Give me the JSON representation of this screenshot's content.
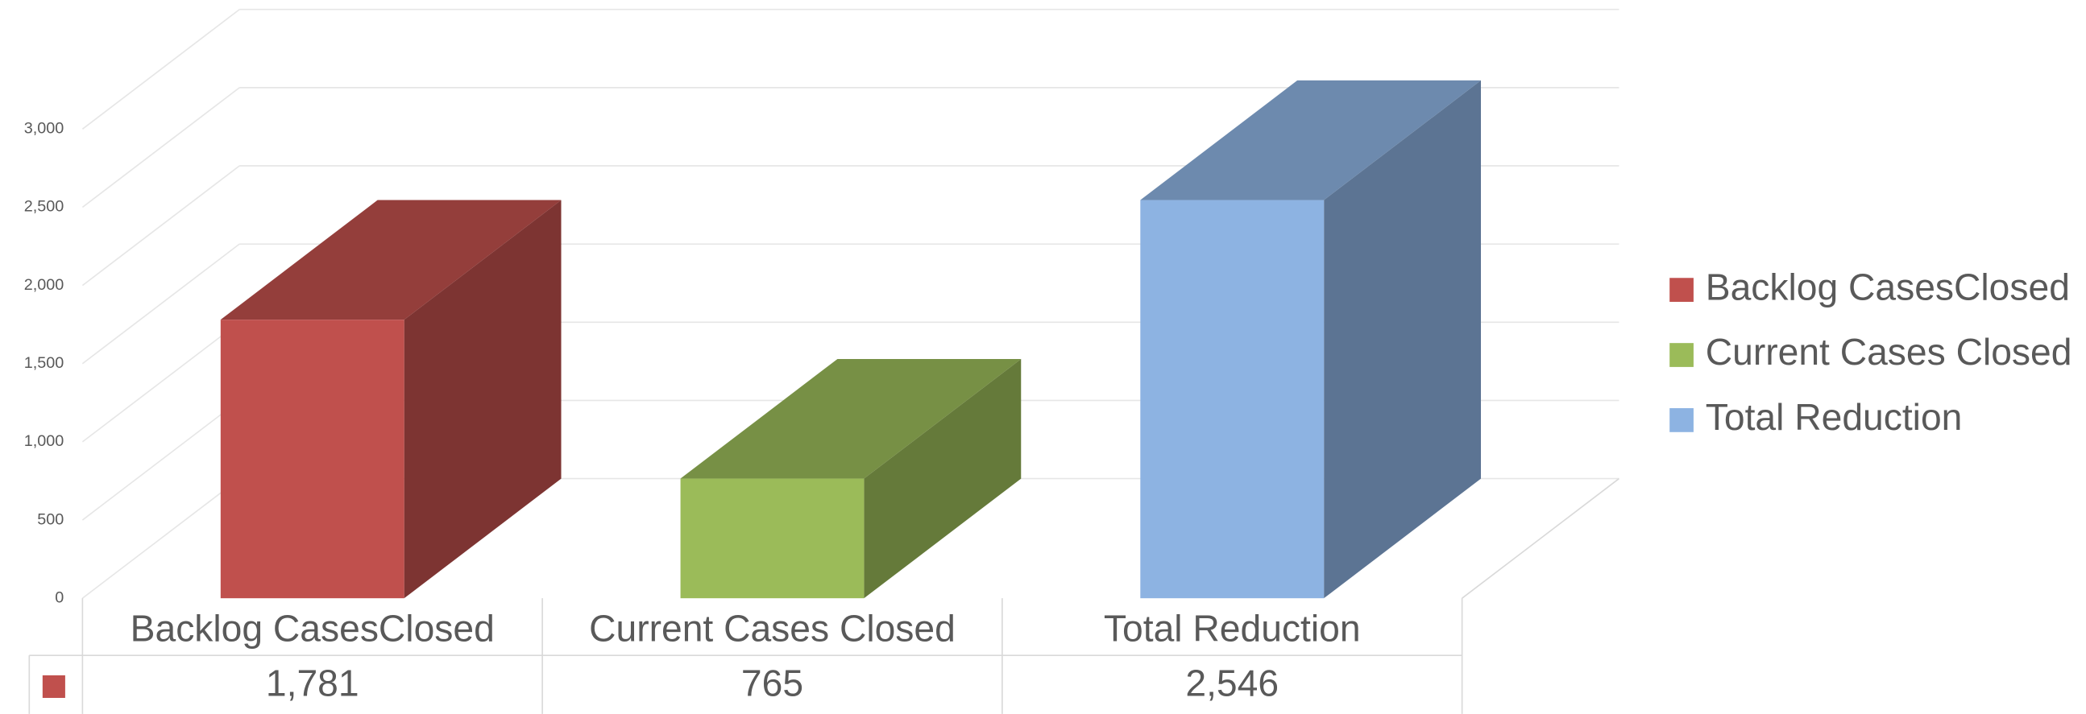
{
  "chart_data": {
    "type": "bar3d",
    "categories": [
      "Backlog CasesClosed",
      "Current Cases Closed",
      "Total Reduction"
    ],
    "values": [
      1781,
      765,
      2546
    ],
    "value_labels": [
      "1,781",
      "765",
      "2,546"
    ],
    "colors": [
      "#c0504d",
      "#9bbb59",
      "#8db3e2"
    ],
    "ylim": [
      0,
      3000
    ],
    "yticks": [
      0,
      {
        "value": 500,
        "label": "500"
      },
      {
        "value": 1000,
        "label": "1,000"
      },
      {
        "value": 1500,
        "label": "1,500"
      },
      {
        "value": 2000,
        "label": "2,000"
      },
      {
        "value": 2500,
        "label": "2,500"
      },
      {
        "value": 3000,
        "label": "3,000"
      }
    ],
    "grid": true,
    "legend": "right",
    "data_table": true
  }
}
